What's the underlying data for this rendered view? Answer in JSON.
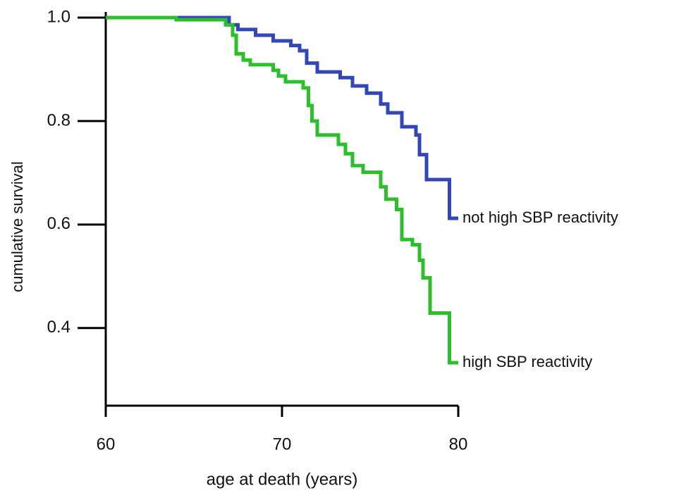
{
  "chart_data": {
    "type": "step",
    "xlabel": "age at death (years)",
    "ylabel": "cumulative survival",
    "xlim": [
      60,
      80
    ],
    "xticks": [
      60,
      70,
      80
    ],
    "ylim": [
      0.25,
      1.0
    ],
    "yticks": [
      0.4,
      0.6,
      0.8,
      {
        "value": 1.0,
        "label": "1.0"
      }
    ],
    "series": [
      {
        "name": "not high SBP reactivity",
        "color": "#3346b8",
        "x": [
          60,
          66.5,
          67,
          67.5,
          68.5,
          69.5,
          70.5,
          71,
          71.4,
          72,
          73.3,
          74,
          74.8,
          75.6,
          76,
          76.8,
          77.6,
          77.8,
          78.2,
          79.5,
          80
        ],
        "values": [
          1.0,
          1.0,
          0.986,
          0.977,
          0.966,
          0.955,
          0.946,
          0.936,
          0.912,
          0.895,
          0.884,
          0.868,
          0.854,
          0.833,
          0.816,
          0.789,
          0.773,
          0.735,
          0.687,
          0.612,
          0.612
        ]
      },
      {
        "name": "high SBP reactivity",
        "color": "#2cbf2c",
        "x": [
          60,
          64,
          66.8,
          67.2,
          67.4,
          67.8,
          68.2,
          69.5,
          69.8,
          70.2,
          71.2,
          71.5,
          71.7,
          72,
          73.2,
          73.6,
          74,
          74.6,
          75.6,
          75.9,
          76.5,
          76.8,
          77.4,
          77.8,
          78,
          78.4,
          79.5,
          80
        ],
        "values": [
          1.0,
          0.996,
          0.986,
          0.966,
          0.93,
          0.918,
          0.909,
          0.898,
          0.887,
          0.876,
          0.864,
          0.83,
          0.8,
          0.773,
          0.755,
          0.737,
          0.714,
          0.701,
          0.673,
          0.649,
          0.629,
          0.571,
          0.561,
          0.531,
          0.497,
          0.429,
          0.333,
          0.333
        ]
      }
    ]
  }
}
